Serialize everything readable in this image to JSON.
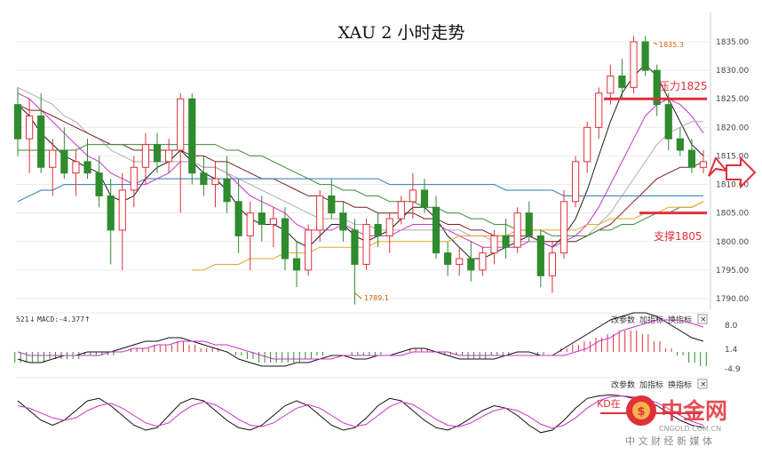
{
  "chart_data": {
    "type": "line",
    "title": "XAU 2 小时走势",
    "price_axis": {
      "ticks": [
        1835,
        1830,
        1825,
        1820,
        1815,
        1810,
        1805,
        1800,
        1795,
        1790
      ],
      "tick_labels": [
        "1835.00",
        "1830.00",
        "1825.00",
        "1820.00",
        "1815.00",
        "1810.00",
        "1805.00",
        "1800.00",
        "1795.00",
        "1790.00"
      ],
      "ylim": [
        1788,
        1839
      ]
    },
    "annotations": {
      "high": "1835.3",
      "low": "1789.1",
      "resistance_label": "压力1825",
      "resistance": 1825,
      "support_label": "支撑1805",
      "support": 1805
    },
    "candles": [
      {
        "o": 1824,
        "h": 1827,
        "l": 1815,
        "c": 1818
      },
      {
        "o": 1818,
        "h": 1825,
        "l": 1812,
        "c": 1822
      },
      {
        "o": 1822,
        "h": 1826,
        "l": 1812,
        "c": 1813
      },
      {
        "o": 1813,
        "h": 1818,
        "l": 1808,
        "c": 1816
      },
      {
        "o": 1816,
        "h": 1820,
        "l": 1811,
        "c": 1812
      },
      {
        "o": 1812,
        "h": 1816,
        "l": 1808,
        "c": 1814
      },
      {
        "o": 1814,
        "h": 1818,
        "l": 1811,
        "c": 1812
      },
      {
        "o": 1812,
        "h": 1815,
        "l": 1806,
        "c": 1808
      },
      {
        "o": 1808,
        "h": 1811,
        "l": 1796,
        "c": 1802
      },
      {
        "o": 1802,
        "h": 1812,
        "l": 1795,
        "c": 1809
      },
      {
        "o": 1809,
        "h": 1815,
        "l": 1806,
        "c": 1813
      },
      {
        "o": 1813,
        "h": 1819,
        "l": 1810,
        "c": 1817
      },
      {
        "o": 1817,
        "h": 1819,
        "l": 1812,
        "c": 1814
      },
      {
        "o": 1814,
        "h": 1818,
        "l": 1812,
        "c": 1816
      },
      {
        "o": 1816,
        "h": 1826,
        "l": 1805,
        "c": 1825
      },
      {
        "o": 1825,
        "h": 1826,
        "l": 1810,
        "c": 1812
      },
      {
        "o": 1812,
        "h": 1815,
        "l": 1808,
        "c": 1810
      },
      {
        "o": 1810,
        "h": 1814,
        "l": 1806,
        "c": 1811
      },
      {
        "o": 1811,
        "h": 1815,
        "l": 1805,
        "c": 1807
      },
      {
        "o": 1807,
        "h": 1811,
        "l": 1798,
        "c": 1801
      },
      {
        "o": 1801,
        "h": 1807,
        "l": 1795,
        "c": 1805
      },
      {
        "o": 1805,
        "h": 1808,
        "l": 1800,
        "c": 1803
      },
      {
        "o": 1803,
        "h": 1806,
        "l": 1799,
        "c": 1804
      },
      {
        "o": 1804,
        "h": 1806,
        "l": 1795,
        "c": 1797
      },
      {
        "o": 1797,
        "h": 1800,
        "l": 1792,
        "c": 1795
      },
      {
        "o": 1795,
        "h": 1803,
        "l": 1794,
        "c": 1802
      },
      {
        "o": 1802,
        "h": 1809,
        "l": 1800,
        "c": 1808
      },
      {
        "o": 1808,
        "h": 1811,
        "l": 1804,
        "c": 1805
      },
      {
        "o": 1805,
        "h": 1807,
        "l": 1800,
        "c": 1802
      },
      {
        "o": 1802,
        "h": 1804,
        "l": 1789,
        "c": 1796
      },
      {
        "o": 1796,
        "h": 1804,
        "l": 1795,
        "c": 1803
      },
      {
        "o": 1803,
        "h": 1805,
        "l": 1799,
        "c": 1801
      },
      {
        "o": 1801,
        "h": 1805,
        "l": 1798,
        "c": 1804
      },
      {
        "o": 1804,
        "h": 1808,
        "l": 1803,
        "c": 1807
      },
      {
        "o": 1807,
        "h": 1812,
        "l": 1804,
        "c": 1809
      },
      {
        "o": 1809,
        "h": 1811,
        "l": 1805,
        "c": 1806
      },
      {
        "o": 1806,
        "h": 1808,
        "l": 1797,
        "c": 1798
      },
      {
        "o": 1798,
        "h": 1800,
        "l": 1794,
        "c": 1796
      },
      {
        "o": 1796,
        "h": 1799,
        "l": 1794,
        "c": 1797
      },
      {
        "o": 1797,
        "h": 1800,
        "l": 1793,
        "c": 1795
      },
      {
        "o": 1795,
        "h": 1799,
        "l": 1794,
        "c": 1798
      },
      {
        "o": 1798,
        "h": 1802,
        "l": 1796,
        "c": 1801
      },
      {
        "o": 1801,
        "h": 1804,
        "l": 1797,
        "c": 1799
      },
      {
        "o": 1799,
        "h": 1806,
        "l": 1798,
        "c": 1805
      },
      {
        "o": 1805,
        "h": 1807,
        "l": 1800,
        "c": 1801
      },
      {
        "o": 1801,
        "h": 1802,
        "l": 1792,
        "c": 1794
      },
      {
        "o": 1794,
        "h": 1800,
        "l": 1791,
        "c": 1798
      },
      {
        "o": 1798,
        "h": 1809,
        "l": 1797,
        "c": 1807
      },
      {
        "o": 1807,
        "h": 1815,
        "l": 1806,
        "c": 1814
      },
      {
        "o": 1814,
        "h": 1821,
        "l": 1812,
        "c": 1820
      },
      {
        "o": 1820,
        "h": 1827,
        "l": 1818,
        "c": 1826
      },
      {
        "o": 1826,
        "h": 1831,
        "l": 1824,
        "c": 1829
      },
      {
        "o": 1829,
        "h": 1832,
        "l": 1825,
        "c": 1827
      },
      {
        "o": 1827,
        "h": 1836,
        "l": 1826,
        "c": 1835
      },
      {
        "o": 1835,
        "h": 1836,
        "l": 1829,
        "c": 1830
      },
      {
        "o": 1830,
        "h": 1831,
        "l": 1822,
        "c": 1824
      },
      {
        "o": 1824,
        "h": 1826,
        "l": 1816,
        "c": 1818
      },
      {
        "o": 1818,
        "h": 1820,
        "l": 1815,
        "c": 1816
      },
      {
        "o": 1816,
        "h": 1818,
        "l": 1812,
        "c": 1813
      },
      {
        "o": 1813,
        "h": 1816,
        "l": 1812,
        "c": 1814
      }
    ],
    "ma_lines": [
      {
        "color": "#1b1b1b",
        "values": [
          1824,
          1822,
          1819,
          1817,
          1815,
          1814,
          1813,
          1812,
          1808,
          1807,
          1808,
          1811,
          1813,
          1814,
          1816,
          1814,
          1812,
          1811,
          1809,
          1806,
          1804,
          1803,
          1803,
          1802,
          1800,
          1799,
          1801,
          1803,
          1803,
          1801,
          1800,
          1801,
          1802,
          1804,
          1806,
          1806,
          1804,
          1801,
          1799,
          1797,
          1797,
          1798,
          1799,
          1800,
          1801,
          1800,
          1799,
          1801,
          1804,
          1809,
          1815,
          1821,
          1826,
          1829,
          1831,
          1829,
          1825,
          1821,
          1817,
          1815
        ]
      },
      {
        "color": "#cc33cc",
        "values": [
          1826,
          1825,
          1823,
          1821,
          1819,
          1817,
          1815,
          1814,
          1812,
          1811,
          1810,
          1810,
          1811,
          1812,
          1814,
          1814,
          1813,
          1813,
          1812,
          1810,
          1808,
          1807,
          1806,
          1805,
          1803,
          1802,
          1802,
          1802,
          1803,
          1802,
          1801,
          1801,
          1801,
          1802,
          1803,
          1803,
          1803,
          1802,
          1801,
          1800,
          1799,
          1799,
          1799,
          1799,
          1800,
          1800,
          1799,
          1800,
          1801,
          1803,
          1806,
          1810,
          1814,
          1818,
          1822,
          1824,
          1825,
          1824,
          1822,
          1819
        ]
      },
      {
        "color": "#b3a9b3",
        "values": [
          1827,
          1826,
          1825,
          1824,
          1822,
          1821,
          1819,
          1818,
          1816,
          1815,
          1814,
          1814,
          1814,
          1814,
          1814,
          1814,
          1813,
          1813,
          1812,
          1811,
          1810,
          1809,
          1808,
          1807,
          1806,
          1805,
          1804,
          1804,
          1804,
          1803,
          1803,
          1802,
          1802,
          1802,
          1802,
          1802,
          1802,
          1802,
          1802,
          1801,
          1801,
          1800,
          1800,
          1800,
          1800,
          1800,
          1800,
          1800,
          1800,
          1801,
          1803,
          1805,
          1808,
          1811,
          1814,
          1817,
          1819,
          1820,
          1821,
          1821
        ]
      },
      {
        "color": "#7a2020",
        "values": [
          1824,
          1823,
          1823,
          1822,
          1821,
          1820,
          1819,
          1818,
          1817,
          1817,
          1816,
          1816,
          1816,
          1816,
          1816,
          1815,
          1815,
          1814,
          1814,
          1813,
          1812,
          1811,
          1811,
          1810,
          1809,
          1808,
          1808,
          1807,
          1807,
          1806,
          1806,
          1805,
          1805,
          1805,
          1805,
          1804,
          1804,
          1803,
          1803,
          1802,
          1802,
          1801,
          1801,
          1801,
          1801,
          1800,
          1800,
          1800,
          1800,
          1801,
          1802,
          1803,
          1805,
          1807,
          1809,
          1811,
          1812,
          1813,
          1813,
          1814
        ]
      },
      {
        "color": "#3a8a3a",
        "values": [
          1816,
          1816,
          1816,
          1816,
          1816,
          1816,
          1817,
          1817,
          1817,
          1817,
          1817,
          1817,
          1817,
          1817,
          1817,
          1817,
          1817,
          1817,
          1816,
          1816,
          1815,
          1815,
          1814,
          1813,
          1812,
          1811,
          1810,
          1810,
          1809,
          1809,
          1808,
          1808,
          1807,
          1807,
          1807,
          1806,
          1806,
          1805,
          1805,
          1804,
          1804,
          1803,
          1803,
          1802,
          1802,
          1802,
          1801,
          1801,
          1801,
          1801,
          1802,
          1802,
          1803,
          1803,
          1804,
          1805,
          1805,
          1806,
          1806,
          1807
        ]
      },
      {
        "color": "#2a7ab8",
        "values": [
          1807,
          1808,
          1809,
          1809,
          1810,
          1810,
          1810,
          1810,
          1810,
          1810,
          1810,
          1811,
          1811,
          1811,
          1811,
          1811,
          1811,
          1811,
          1811,
          1811,
          1811,
          1811,
          1811,
          1811,
          1811,
          1811,
          1811,
          1811,
          1811,
          1811,
          1811,
          1811,
          1810,
          1810,
          1810,
          1810,
          1810,
          1810,
          1810,
          1810,
          1810,
          1810,
          1809,
          1809,
          1809,
          1809,
          1809,
          1808,
          1808,
          1808,
          1808,
          1808,
          1808,
          1808,
          1808,
          1808,
          1808,
          1808,
          1808,
          1808
        ]
      },
      {
        "color": "#e6a52a",
        "values": [
          null,
          null,
          null,
          null,
          null,
          null,
          null,
          null,
          null,
          null,
          null,
          null,
          null,
          null,
          null,
          1795,
          1795,
          1796,
          1796,
          1796,
          1797,
          1797,
          1797,
          1798,
          1798,
          1798,
          1799,
          1799,
          1799,
          1799,
          1799,
          1800,
          1800,
          1800,
          1800,
          1800,
          1800,
          1800,
          1801,
          1801,
          1801,
          1801,
          1801,
          1802,
          1802,
          1802,
          1802,
          1802,
          1802,
          1803,
          1803,
          1804,
          1804,
          1804,
          1805,
          1805,
          1806,
          1806,
          1806,
          1807
        ]
      }
    ],
    "macd": {
      "header": "MACD:-4.377",
      "header_prefix": "521",
      "ticks": [
        8.0,
        1.4,
        -4.9
      ],
      "tick_labels": [
        "8.0",
        "1.4",
        "-4.9"
      ],
      "histogram": [
        -3,
        -3,
        -3,
        -2,
        -2,
        -2,
        -1,
        -1,
        -1,
        0,
        1,
        1,
        2,
        2,
        3,
        2,
        1,
        1,
        0,
        -1,
        -2,
        -3,
        -3,
        -3,
        -3,
        -2,
        -1,
        0,
        0,
        -1,
        -1,
        -1,
        0,
        0,
        1,
        1,
        0,
        -1,
        -1,
        -2,
        -2,
        -1,
        -1,
        0,
        0,
        -1,
        0,
        1,
        2,
        3,
        4,
        5,
        6,
        6,
        5,
        3,
        1,
        -1,
        -3,
        -4
      ],
      "dif": [
        -2,
        -3,
        -3,
        -2,
        -1,
        -1,
        0,
        0,
        0,
        1,
        2,
        3,
        3,
        4,
        4,
        3,
        2,
        1,
        0,
        -2,
        -3,
        -4,
        -4,
        -4,
        -3,
        -3,
        -2,
        -1,
        -1,
        -2,
        -2,
        -1,
        -1,
        0,
        1,
        1,
        0,
        -1,
        -2,
        -2,
        -2,
        -2,
        -1,
        0,
        0,
        -1,
        -1,
        1,
        3,
        5,
        7,
        9,
        10,
        11,
        11,
        10,
        8,
        6,
        4,
        3
      ],
      "dea": [
        0,
        -1,
        -1,
        -1,
        -1,
        -1,
        -1,
        -1,
        0,
        0,
        1,
        1,
        2,
        2,
        3,
        3,
        3,
        2,
        2,
        1,
        0,
        -1,
        -2,
        -2,
        -2,
        -2,
        -2,
        -2,
        -1,
        -1,
        -1,
        -1,
        -1,
        -1,
        0,
        0,
        0,
        0,
        -1,
        -1,
        -1,
        -1,
        -1,
        -1,
        -1,
        -1,
        -1,
        -1,
        0,
        1,
        3,
        4,
        6,
        7,
        8,
        9,
        9,
        9,
        8,
        7
      ]
    },
    "kd": {
      "label": "KD在",
      "k": [
        80,
        60,
        40,
        30,
        40,
        60,
        80,
        85,
        70,
        50,
        30,
        20,
        25,
        50,
        75,
        85,
        80,
        60,
        40,
        25,
        20,
        30,
        50,
        70,
        80,
        70,
        50,
        30,
        20,
        25,
        45,
        70,
        85,
        80,
        60,
        40,
        25,
        20,
        30,
        45,
        60,
        70,
        65,
        50,
        30,
        15,
        20,
        40,
        65,
        85,
        90,
        92,
        90,
        85,
        80,
        70,
        55,
        40,
        30,
        25
      ],
      "d": [
        70,
        65,
        55,
        45,
        40,
        45,
        60,
        70,
        75,
        65,
        50,
        35,
        28,
        35,
        55,
        70,
        78,
        72,
        58,
        42,
        30,
        27,
        35,
        50,
        65,
        72,
        65,
        50,
        35,
        27,
        32,
        50,
        68,
        78,
        72,
        58,
        42,
        30,
        27,
        35,
        48,
        60,
        65,
        60,
        48,
        32,
        24,
        30,
        45,
        65,
        80,
        88,
        90,
        88,
        84,
        76,
        64,
        50,
        38,
        30
      ]
    },
    "panel_buttons": [
      "改参数",
      "加指标",
      "换指标",
      "×"
    ]
  },
  "watermark": {
    "name": "中金网",
    "url": "CNGOLD.COM.CN",
    "slogan": "中 文 财 经 新 媒 体"
  }
}
